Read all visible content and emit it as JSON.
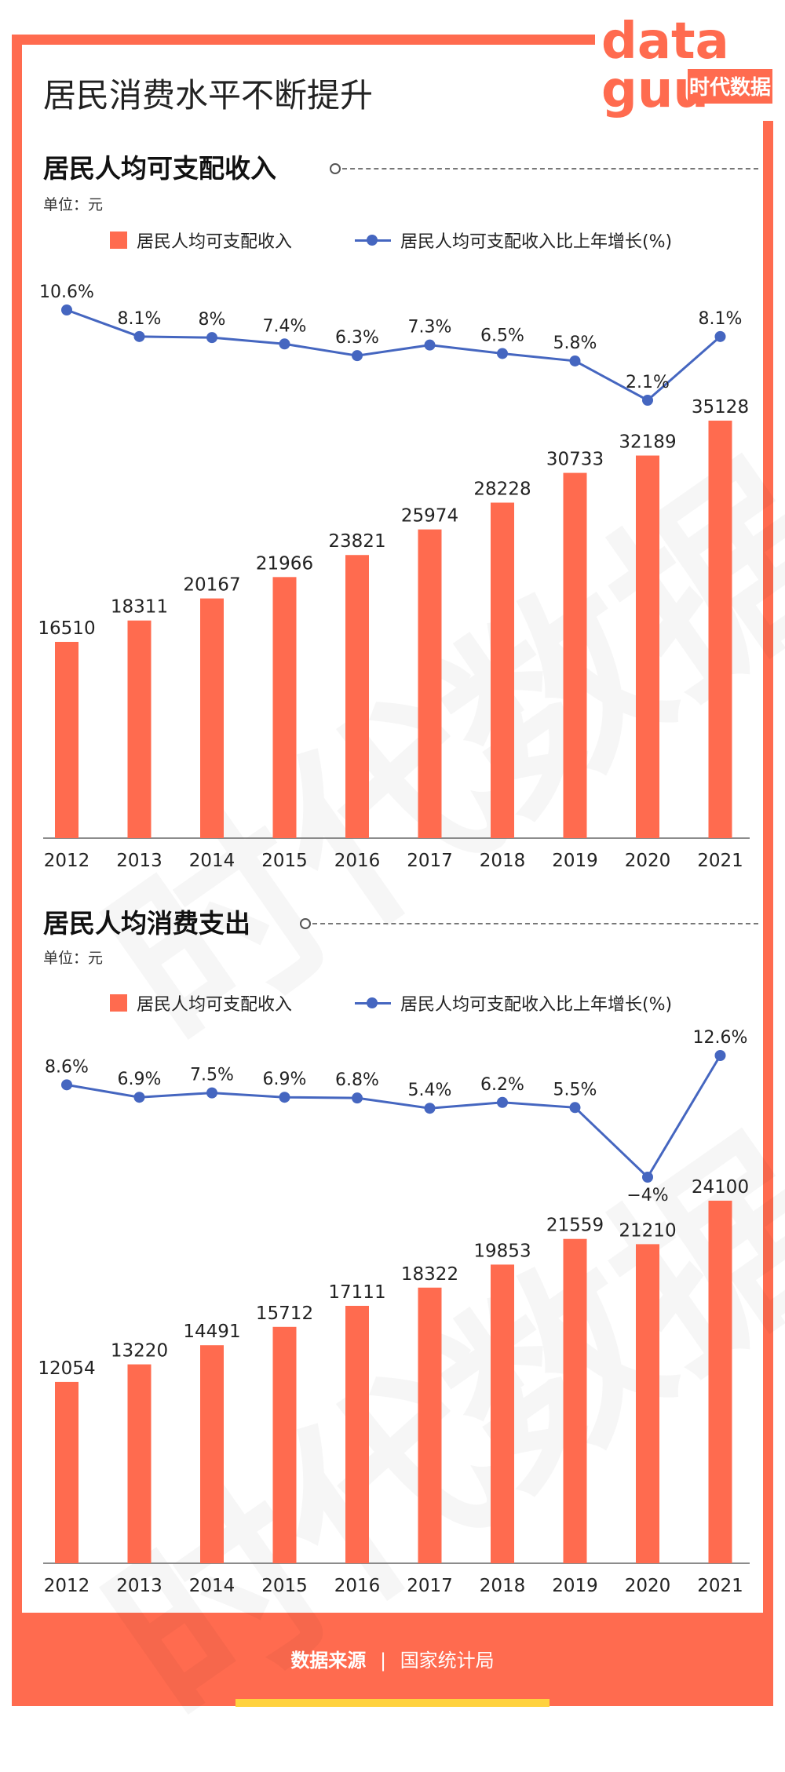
{
  "main_title": "居民消费水平不断提升",
  "logo": {
    "line1": "data",
    "line2": "guu",
    "brand": "时代数据"
  },
  "charts": [
    {
      "section_title": "居民人均可支配收入",
      "unit_label": "单位：元",
      "legend_bar": "居民人均可支配收入",
      "legend_line": "居民人均可支配收入比上年增长(%)"
    },
    {
      "section_title": "居民人均消费支出",
      "unit_label": "单位：元",
      "legend_bar": "居民人均可支配收入",
      "legend_line": "居民人均可支配收入比上年增长(%)"
    }
  ],
  "chart_data": [
    {
      "type": "bar",
      "categories": [
        "2012",
        "2013",
        "2014",
        "2015",
        "2016",
        "2017",
        "2018",
        "2019",
        "2020",
        "2021"
      ],
      "series": [
        {
          "name": "居民人均可支配收入",
          "values": [
            16510,
            18311,
            20167,
            21966,
            23821,
            25974,
            28228,
            30733,
            32189,
            35128
          ],
          "labels": [
            "16510",
            "18311",
            "20167",
            "21966",
            "23821",
            "25974",
            "28228",
            "30733",
            "32189",
            "35128"
          ]
        },
        {
          "name": "居民人均可支配收入比上年增长(%)",
          "type": "line",
          "values": [
            10.6,
            8.1,
            8,
            7.4,
            6.3,
            7.3,
            6.5,
            5.8,
            2.1,
            8.1
          ],
          "labels": [
            "10.6%",
            "8.1%",
            "8%",
            "7.4%",
            "6.3%",
            "7.3%",
            "6.5%",
            "5.8%",
            "2.1%",
            "8.1%"
          ]
        }
      ],
      "colors": {
        "bar": "#ff6b4f",
        "line": "#4566c0"
      }
    },
    {
      "type": "bar",
      "categories": [
        "2012",
        "2013",
        "2014",
        "2015",
        "2016",
        "2017",
        "2018",
        "2019",
        "2020",
        "2021"
      ],
      "series": [
        {
          "name": "居民人均可支配收入",
          "values": [
            12054,
            13220,
            14491,
            15712,
            17111,
            18322,
            19853,
            21559,
            21210,
            24100
          ],
          "labels": [
            "12054",
            "13220",
            "14491",
            "15712",
            "17111",
            "18322",
            "19853",
            "21559",
            "21210",
            "24100"
          ]
        },
        {
          "name": "居民人均可支配收入比上年增长(%)",
          "type": "line",
          "values": [
            8.6,
            6.9,
            7.5,
            6.9,
            6.8,
            5.4,
            6.2,
            5.5,
            -4,
            12.6
          ],
          "labels": [
            "8.6%",
            "6.9%",
            "7.5%",
            "6.9%",
            "6.8%",
            "5.4%",
            "6.2%",
            "5.5%",
            "−4%",
            "12.6%"
          ]
        }
      ],
      "colors": {
        "bar": "#ff6b4f",
        "line": "#4566c0"
      }
    }
  ],
  "footer": {
    "source_label": "数据来源",
    "separator": "|",
    "source_value": "国家统计局"
  }
}
